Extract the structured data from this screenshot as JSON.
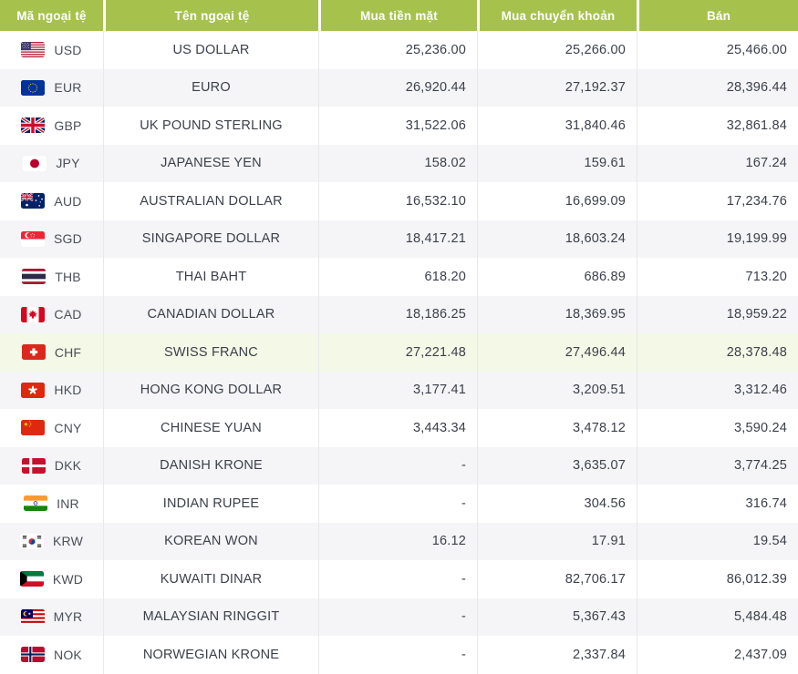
{
  "colors": {
    "header_bg": "#a6c24c",
    "header_text": "#ffffff",
    "row_alt_bg": "#f5f5f7",
    "row_highlight_bg": "#f4f9e7",
    "body_text": "#3b404a"
  },
  "table": {
    "columns": [
      {
        "label": "Mã ngoại tệ"
      },
      {
        "label": "Tên ngoại tệ"
      },
      {
        "label": "Mua tiền mặt"
      },
      {
        "label": "Mua chuyển khoản"
      },
      {
        "label": "Bán"
      }
    ],
    "rows": [
      {
        "flag": "us",
        "code": "USD",
        "name": "US DOLLAR",
        "cash": "25,236.00",
        "transfer": "25,266.00",
        "sell": "25,466.00"
      },
      {
        "flag": "eu",
        "code": "EUR",
        "name": "EURO",
        "cash": "26,920.44",
        "transfer": "27,192.37",
        "sell": "28,396.44"
      },
      {
        "flag": "gb",
        "code": "GBP",
        "name": "UK POUND STERLING",
        "cash": "31,522.06",
        "transfer": "31,840.46",
        "sell": "32,861.84"
      },
      {
        "flag": "jp",
        "code": "JPY",
        "name": "JAPANESE YEN",
        "cash": "158.02",
        "transfer": "159.61",
        "sell": "167.24"
      },
      {
        "flag": "au",
        "code": "AUD",
        "name": "AUSTRALIAN DOLLAR",
        "cash": "16,532.10",
        "transfer": "16,699.09",
        "sell": "17,234.76"
      },
      {
        "flag": "sg",
        "code": "SGD",
        "name": "SINGAPORE DOLLAR",
        "cash": "18,417.21",
        "transfer": "18,603.24",
        "sell": "19,199.99"
      },
      {
        "flag": "th",
        "code": "THB",
        "name": "THAI BAHT",
        "cash": "618.20",
        "transfer": "686.89",
        "sell": "713.20"
      },
      {
        "flag": "ca",
        "code": "CAD",
        "name": "CANADIAN DOLLAR",
        "cash": "18,186.25",
        "transfer": "18,369.95",
        "sell": "18,959.22"
      },
      {
        "flag": "ch",
        "code": "CHF",
        "name": "SWISS FRANC",
        "cash": "27,221.48",
        "transfer": "27,496.44",
        "sell": "28,378.48",
        "highlighted": true
      },
      {
        "flag": "hk",
        "code": "HKD",
        "name": "HONG KONG DOLLAR",
        "cash": "3,177.41",
        "transfer": "3,209.51",
        "sell": "3,312.46"
      },
      {
        "flag": "cn",
        "code": "CNY",
        "name": "CHINESE YUAN",
        "cash": "3,443.34",
        "transfer": "3,478.12",
        "sell": "3,590.24"
      },
      {
        "flag": "dk",
        "code": "DKK",
        "name": "DANISH KRONE",
        "cash": "-",
        "transfer": "3,635.07",
        "sell": "3,774.25"
      },
      {
        "flag": "in",
        "code": "INR",
        "name": "INDIAN RUPEE",
        "cash": "-",
        "transfer": "304.56",
        "sell": "316.74"
      },
      {
        "flag": "kr",
        "code": "KRW",
        "name": "KOREAN WON",
        "cash": "16.12",
        "transfer": "17.91",
        "sell": "19.54"
      },
      {
        "flag": "kw",
        "code": "KWD",
        "name": "KUWAITI DINAR",
        "cash": "-",
        "transfer": "82,706.17",
        "sell": "86,012.39"
      },
      {
        "flag": "my",
        "code": "MYR",
        "name": "MALAYSIAN RINGGIT",
        "cash": "-",
        "transfer": "5,367.43",
        "sell": "5,484.48"
      },
      {
        "flag": "no",
        "code": "NOK",
        "name": "NORWEGIAN KRONE",
        "cash": "-",
        "transfer": "2,337.84",
        "sell": "2,437.09"
      }
    ]
  }
}
